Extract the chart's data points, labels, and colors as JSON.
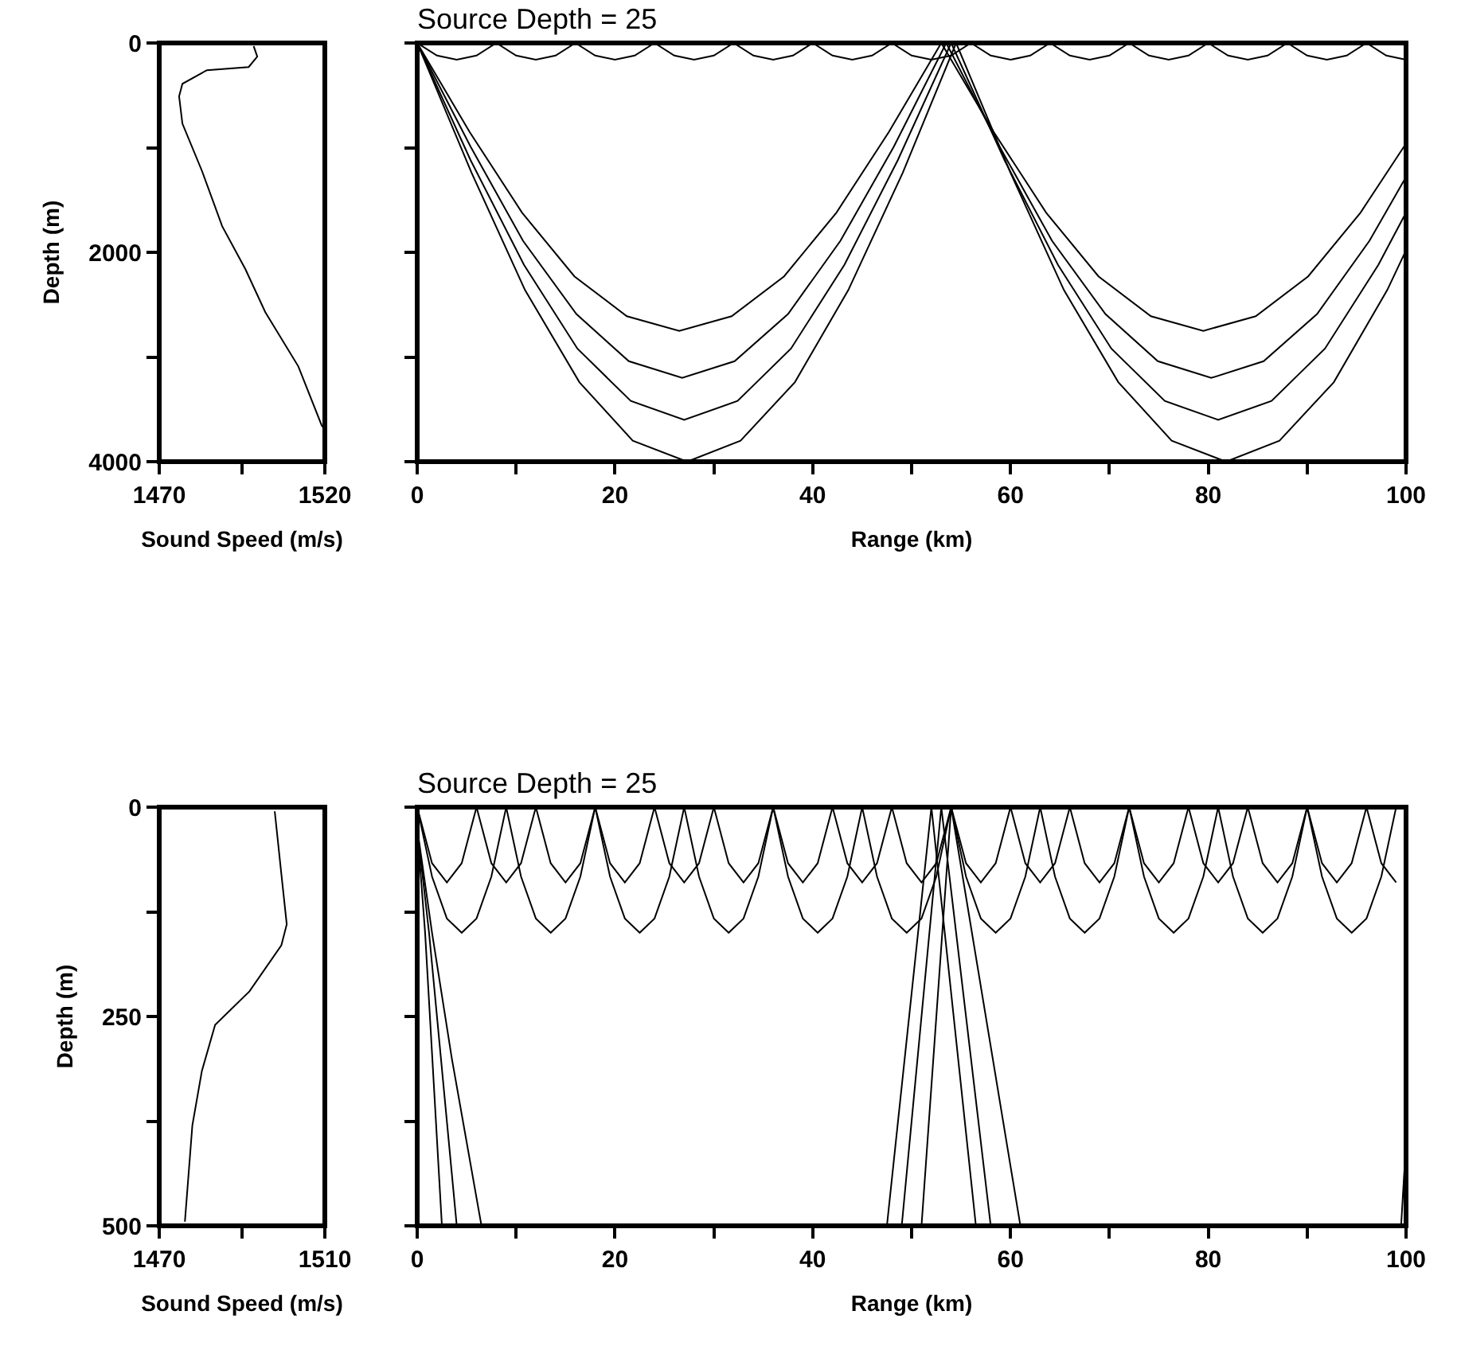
{
  "chart_data": [
    {
      "type": "line",
      "xlabel": "Sound Speed (m/s)",
      "ylabel": "Depth (m)",
      "xlim": [
        1470,
        1520
      ],
      "xticks": [
        1470,
        {
          "value": 1495,
          "label": null
        },
        1520
      ],
      "ylim": [
        4000,
        0
      ],
      "yticks": [
        0,
        {
          "value": 1000,
          "label": null
        },
        2000,
        {
          "value": 3000,
          "label": null
        },
        4000
      ],
      "grid": false,
      "series": [
        {
          "color": "#000000",
          "x": [
            1498.5,
            1499.6,
            1497,
            1484.4,
            1477,
            1476,
            1477,
            1483,
            1489,
            1496,
            1502,
            1512,
            1519,
            1520
          ],
          "values": [
            30,
            130,
            230,
            260,
            390,
            510,
            770,
            1230,
            1750,
            2160,
            2570,
            3090,
            3650,
            3700
          ]
        }
      ]
    },
    {
      "type": "line",
      "title": "Source Depth = 25",
      "xlabel": "Range (km)",
      "xlim": [
        0,
        100
      ],
      "xticks": [
        0,
        {
          "value": 10,
          "label": null
        },
        20,
        {
          "value": 30,
          "label": null
        },
        40,
        {
          "value": 50,
          "label": null
        },
        60,
        {
          "value": 70,
          "label": null
        },
        80,
        {
          "value": 90,
          "label": null
        },
        100
      ],
      "ylim": [
        4000,
        0
      ],
      "yticks": [
        {
          "value": 0,
          "label": null
        },
        {
          "value": 1000,
          "label": null
        },
        {
          "value": 2000,
          "label": null
        },
        {
          "value": 3000,
          "label": null
        },
        {
          "value": 4000,
          "label": null
        }
      ],
      "tick_labels": "x",
      "grid": false,
      "series": [
        {
          "color": "#000000",
          "x": [
            0,
            5.3,
            10.6,
            15.9,
            21.2,
            26.5,
            31.8,
            37.1,
            42.4,
            47.7,
            53,
            58.3,
            63.6,
            68.9,
            74.2,
            79.5,
            84.8,
            90.1,
            95.4,
            100
          ],
          "values": [
            0,
            850,
            1620,
            2230,
            2610,
            2750,
            2610,
            2230,
            1620,
            850,
            0,
            850,
            1620,
            2230,
            2610,
            2750,
            2610,
            2230,
            1620,
            960
          ]
        },
        {
          "color": "#000000",
          "x": [
            0,
            5.4,
            10.7,
            16.1,
            21.4,
            26.8,
            32.1,
            37.5,
            42.8,
            48.2,
            53.5,
            58.9,
            64.2,
            69.6,
            74.9,
            80.3,
            85.6,
            91,
            96.3,
            100
          ],
          "values": [
            0,
            990,
            1890,
            2590,
            3040,
            3200,
            3040,
            2590,
            1890,
            990,
            0,
            990,
            1890,
            2590,
            3040,
            3200,
            3040,
            2590,
            1890,
            1280
          ]
        },
        {
          "color": "#000000",
          "x": [
            0,
            5.4,
            10.8,
            16.2,
            21.6,
            27,
            32.4,
            37.8,
            43.2,
            48.6,
            54,
            59.4,
            64.8,
            70.2,
            75.6,
            81,
            86.4,
            91.8,
            97.2,
            100
          ],
          "values": [
            0,
            1120,
            2120,
            2920,
            3420,
            3600,
            3420,
            2920,
            2120,
            1120,
            0,
            1120,
            2120,
            2920,
            3420,
            3600,
            3420,
            2920,
            2120,
            1620
          ]
        },
        {
          "color": "#000000",
          "x": [
            0,
            5.5,
            10.9,
            16.4,
            21.8,
            27.3,
            32.7,
            38.2,
            43.6,
            49.1,
            54.5,
            60,
            65.4,
            70.9,
            76.3,
            81.8,
            87.2,
            92.7,
            98.1,
            100
          ],
          "values": [
            0,
            1240,
            2360,
            3240,
            3800,
            4000,
            3800,
            3240,
            2360,
            1240,
            0,
            1240,
            2360,
            3240,
            3800,
            4000,
            3800,
            3240,
            2360,
            1980
          ]
        },
        {
          "color": "#000000",
          "x": [
            0,
            2,
            4,
            6,
            8,
            10,
            12,
            14,
            16,
            18,
            20,
            22,
            24,
            26,
            28,
            30,
            32,
            34,
            36,
            38,
            40,
            42,
            44,
            46,
            48,
            50,
            52,
            54,
            56,
            58,
            60,
            62,
            64,
            66,
            68,
            70,
            72,
            74,
            76,
            78,
            80,
            82,
            84,
            86,
            88,
            90,
            92,
            94,
            96,
            98,
            100
          ],
          "values": [
            0,
            120,
            160,
            120,
            0,
            120,
            160,
            120,
            0,
            120,
            160,
            120,
            0,
            120,
            160,
            120,
            0,
            120,
            160,
            120,
            0,
            120,
            160,
            120,
            0,
            120,
            160,
            120,
            0,
            120,
            160,
            120,
            0,
            120,
            160,
            120,
            0,
            120,
            160,
            120,
            0,
            120,
            160,
            120,
            0,
            120,
            160,
            120,
            0,
            120,
            160
          ]
        }
      ]
    },
    {
      "type": "line",
      "xlabel": "Sound Speed (m/s)",
      "ylabel": "Depth (m)",
      "xlim": [
        1470,
        1510
      ],
      "xticks": [
        1470,
        {
          "value": 1490,
          "label": null
        },
        1510
      ],
      "ylim": [
        500,
        0
      ],
      "yticks": [
        0,
        {
          "value": 125,
          "label": null
        },
        250,
        {
          "value": 375,
          "label": null
        },
        500
      ],
      "grid": false,
      "series": [
        {
          "color": "#000000",
          "x": [
            1497.9,
            1499.5,
            1500.8,
            1499.5,
            1491.8,
            1483.5,
            1480.3,
            1478,
            1476.2
          ],
          "values": [
            5,
            80,
            140,
            165,
            220,
            260,
            315,
            380,
            495
          ]
        }
      ]
    },
    {
      "type": "line",
      "title": "Source Depth = 25",
      "xlabel": "Range (km)",
      "xlim": [
        0,
        100
      ],
      "xticks": [
        0,
        {
          "value": 10,
          "label": null
        },
        20,
        {
          "value": 30,
          "label": null
        },
        40,
        {
          "value": 50,
          "label": null
        },
        60,
        {
          "value": 70,
          "label": null
        },
        80,
        {
          "value": 90,
          "label": null
        },
        100
      ],
      "ylim": [
        500,
        0
      ],
      "yticks": [
        {
          "value": 0,
          "label": null
        },
        {
          "value": 125,
          "label": null
        },
        {
          "value": 250,
          "label": null
        },
        {
          "value": 375,
          "label": null
        },
        {
          "value": 500,
          "label": null
        }
      ],
      "tick_labels": "x",
      "grid": false,
      "series": [
        {
          "color": "#000000",
          "x": [
            0,
            1.5,
            3,
            4.5,
            6,
            7.5,
            9,
            10.5,
            12,
            13.5,
            15,
            16.5,
            18,
            19.5,
            21,
            22.5,
            24,
            25.5,
            27,
            28.5,
            30,
            31.5,
            33,
            34.5,
            36,
            37.5,
            39,
            40.5,
            42,
            43.5,
            45,
            46.5,
            48,
            49.5,
            51,
            52.5,
            54,
            55.5,
            57,
            58.5,
            60,
            61.5,
            63,
            64.5,
            66,
            67.5,
            69,
            70.5,
            72,
            73.5,
            75,
            76.5,
            78,
            79.5,
            81,
            82.5,
            84,
            85.5,
            87,
            88.5,
            90,
            91.5,
            93,
            94.5,
            96,
            97.5,
            99
          ],
          "values": [
            0,
            83,
            133,
            150,
            133,
            83,
            0,
            83,
            133,
            150,
            133,
            83,
            0,
            83,
            133,
            150,
            133,
            83,
            0,
            83,
            133,
            150,
            133,
            83,
            0,
            83,
            133,
            150,
            133,
            83,
            0,
            83,
            133,
            150,
            133,
            83,
            0,
            83,
            133,
            150,
            133,
            83,
            0,
            83,
            133,
            150,
            133,
            83,
            0,
            83,
            133,
            150,
            133,
            83,
            0,
            83,
            133,
            150,
            133,
            83,
            0,
            83,
            133,
            150,
            133,
            83,
            0
          ]
        },
        {
          "color": "#000000",
          "x": [
            0,
            1.5,
            3,
            4.5,
            6,
            7.5,
            9,
            10.5,
            12,
            13.5,
            15,
            16.5,
            18,
            19.5,
            21,
            22.5,
            24,
            25.5,
            27,
            28.5,
            30,
            31.5,
            33,
            34.5,
            36,
            37.5,
            39,
            40.5,
            42,
            43.5,
            45,
            46.5,
            48,
            49.5,
            51,
            52.5,
            54,
            55.5,
            57,
            58.5,
            60,
            61.5,
            63,
            64.5,
            66,
            67.5,
            69,
            70.5,
            72,
            73.5,
            75,
            76.5,
            78,
            79.5,
            81,
            82.5,
            84,
            85.5,
            87,
            88.5,
            90,
            91.5,
            93,
            94.5,
            96,
            97.5,
            99
          ],
          "values": [
            0,
            67,
            90,
            67,
            0,
            67,
            90,
            67,
            0,
            67,
            90,
            67,
            0,
            67,
            90,
            67,
            0,
            67,
            90,
            67,
            0,
            67,
            90,
            67,
            0,
            67,
            90,
            67,
            0,
            67,
            90,
            67,
            0,
            67,
            90,
            67,
            0,
            67,
            90,
            67,
            0,
            67,
            90,
            67,
            0,
            67,
            90,
            67,
            0,
            67,
            90,
            67,
            0,
            67,
            90,
            67,
            0,
            67,
            90,
            67,
            0,
            67,
            90,
            67,
            0,
            67,
            90
          ]
        },
        {
          "color": "#000000",
          "x": [
            0,
            0.8,
            2.5
          ],
          "values": [
            25,
            150,
            500
          ]
        },
        {
          "color": "#000000",
          "x": [
            0,
            1.2,
            4
          ],
          "values": [
            25,
            150,
            500
          ]
        },
        {
          "color": "#000000",
          "x": [
            0,
            1.5,
            3.5,
            6.5
          ],
          "values": [
            25,
            150,
            300,
            500
          ]
        },
        {
          "color": "#000000",
          "x": [
            47.5,
            52,
            56.5
          ],
          "values": [
            500,
            0,
            500
          ]
        },
        {
          "color": "#000000",
          "x": [
            49,
            53,
            58
          ],
          "values": [
            500,
            0,
            500
          ]
        },
        {
          "color": "#000000",
          "x": [
            51,
            54,
            61
          ],
          "values": [
            500,
            0,
            500
          ]
        },
        {
          "color": "#000000",
          "x": [
            99.5,
            100
          ],
          "values": [
            500,
            400
          ]
        }
      ]
    }
  ]
}
